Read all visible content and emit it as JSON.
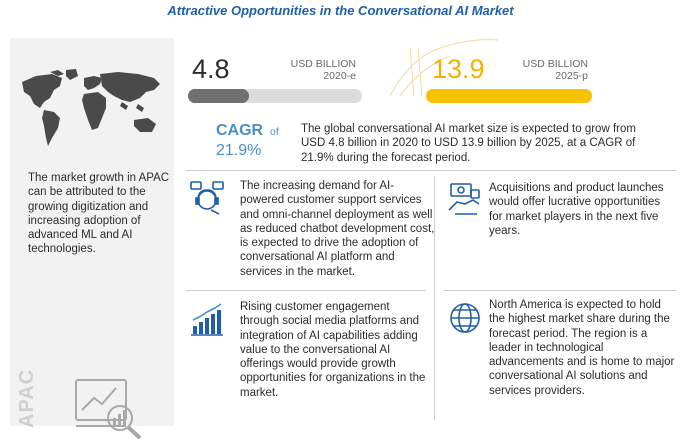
{
  "title": "Attractive Opportunities in the Conversational AI Market",
  "left_panel": {
    "text": "The market growth in APAC can be attributed to the growing digitization and increasing adoption of advanced ML and AI technologies.",
    "region_label": "APAC",
    "map_icon": "world-map-icon",
    "analytics_icon": "magnifier-chart-icon"
  },
  "market": {
    "value_2020": "4.8",
    "unit_2020": "USD BILLION",
    "year_2020": "2020-e",
    "value_2025": "13.9",
    "unit_2025": "USD BILLION",
    "year_2025": "2025-p",
    "bar_2020_fraction": 0.35,
    "bar_2025_fraction": 1.0,
    "bar_2020_color": "#707070",
    "bar_2025_color": "#f7c200"
  },
  "cagr": {
    "label": "CAGR",
    "of": "of",
    "value": "21.9%",
    "description": "The global conversational AI market size is expected to grow from USD 4.8 billion in 2020 to USD 13.9 billion by 2025, at a CAGR of 21.9% during the forecast period."
  },
  "items": [
    {
      "icon": "customer-support-icon",
      "text": "The increasing demand for AI-powered customer support services and omni-channel deployment as well as reduced chatbot development cost, is expected to drive the adoption of conversational AI platform and services in the market."
    },
    {
      "icon": "money-icon",
      "text": "Acquisitions and product launches would offer lucrative opportunities for market players in the next five years."
    },
    {
      "icon": "growth-chart-icon",
      "text": "Rising customer engagement through social media platforms and integration of AI capabilities adding value to the conversational AI offerings would provide growth opportunities for organizations in the market."
    },
    {
      "icon": "globe-icon",
      "text": "North America is expected to hold the highest market share during the forecast period. The region is a leader in technological advancements and is home to major conversational AI solutions and services providers."
    }
  ],
  "colors": {
    "title": "#1f5fa8",
    "accent_blue": "#4a8fc8",
    "accent_yellow": "#f7c200",
    "panel_grey": "#f2f2f2"
  }
}
